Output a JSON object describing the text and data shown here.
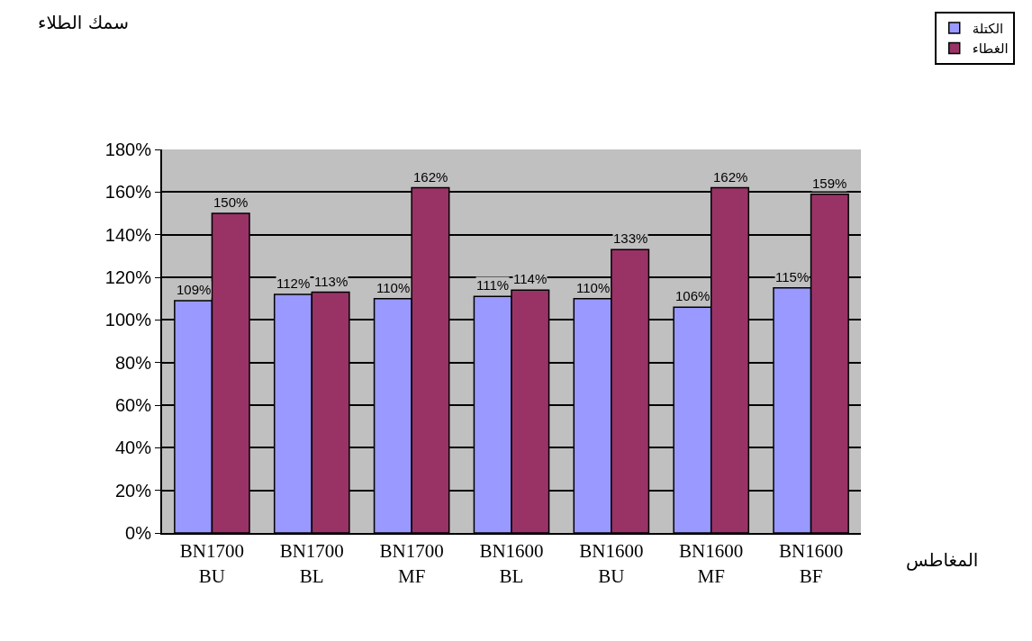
{
  "chart_data": {
    "type": "bar",
    "categories": [
      "BN1700\nBU",
      "BN1700\nBL",
      "BN1700\nMF",
      "BN1600\nBL",
      "BN1600\nBU",
      "BN1600\nMF",
      "BN1600\nBF"
    ],
    "series": [
      {
        "name": "الكتلة",
        "color": "#9999ff",
        "values": [
          109,
          112,
          110,
          111,
          110,
          106,
          115
        ],
        "value_labels": [
          "109%",
          "112%",
          "110%",
          "111%",
          "110%",
          "106%",
          "115%"
        ]
      },
      {
        "name": "الغطاء",
        "color": "#993366",
        "values": [
          150,
          113,
          162,
          114,
          133,
          162,
          159
        ],
        "value_labels": [
          "150%",
          "113%",
          "162%",
          "114%",
          "133%",
          "162%",
          "159%"
        ]
      }
    ],
    "annotations": [
      "سمك الطلاء",
      "المغاطس"
    ],
    "ylim": [
      0,
      180
    ],
    "yticks": [
      {
        "value": 0,
        "label": "0%"
      },
      {
        "value": 20,
        "label": "20%"
      },
      {
        "value": 40,
        "label": "40%"
      },
      {
        "value": 60,
        "label": "60%"
      },
      {
        "value": 80,
        "label": "80%"
      },
      {
        "value": 100,
        "label": "100%"
      },
      {
        "value": 120,
        "label": "120%"
      },
      {
        "value": 140,
        "label": "140%"
      },
      {
        "value": 160,
        "label": "160%"
      },
      {
        "value": 180,
        "label": "180%"
      }
    ],
    "grid": "y",
    "legend": "top right"
  }
}
